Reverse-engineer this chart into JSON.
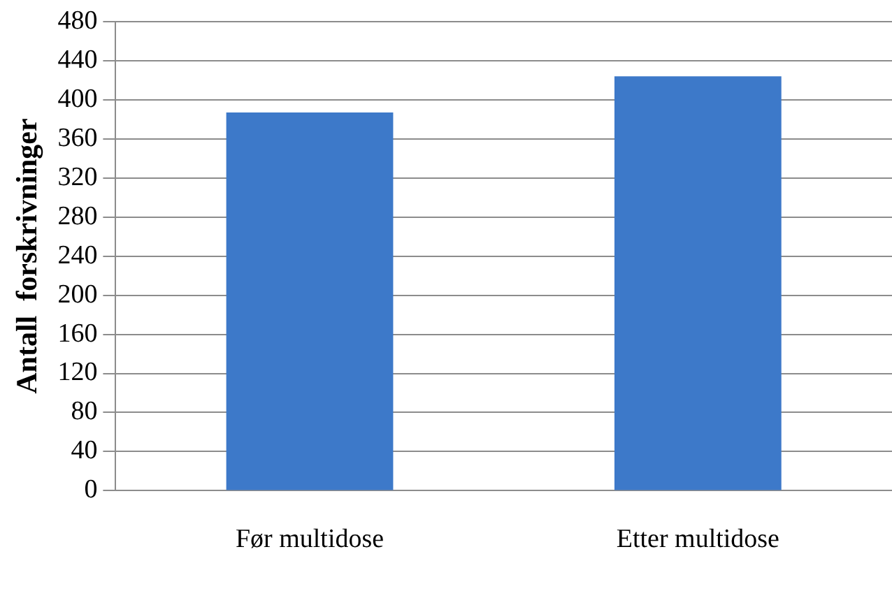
{
  "chart_data": {
    "type": "bar",
    "ylabel": "Antall  forskrivninger",
    "categories": [
      "Før multidose",
      "Etter multidose"
    ],
    "values": [
      387,
      424
    ],
    "color": "#3d79c9",
    "ylim": [
      0,
      480
    ],
    "yticks": [
      0,
      40,
      80,
      120,
      160,
      200,
      240,
      280,
      320,
      360,
      400,
      440,
      480
    ],
    "grid": "y",
    "legend": false
  }
}
